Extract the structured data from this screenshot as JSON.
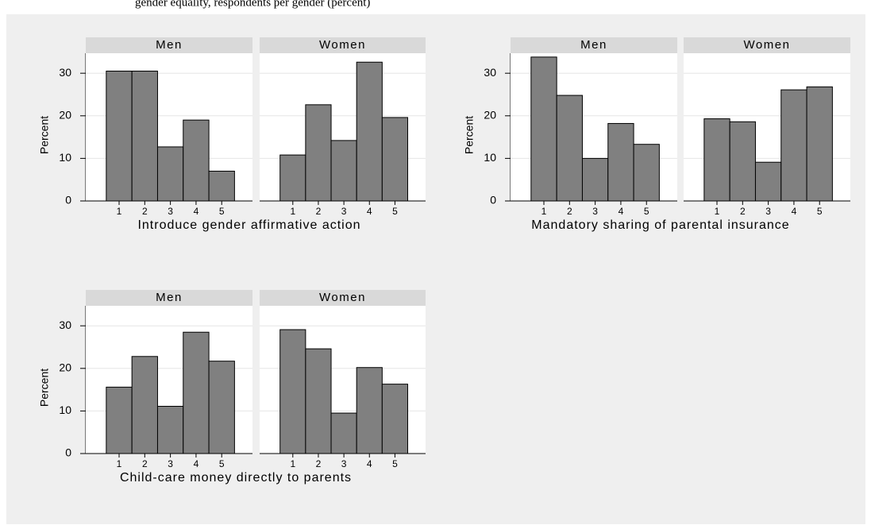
{
  "caption": "gender equality, respondents per gender (percent)",
  "chart_data": [
    {
      "type": "histogram",
      "x_label": "Introduce gender affirmative action",
      "y_label": "Percent",
      "bins": [
        0.5,
        1.5,
        2.5,
        3.5,
        4.5,
        5.5
      ],
      "xlim": [
        -0.3,
        6.2
      ],
      "xticks": [
        1,
        2,
        3,
        4,
        5
      ],
      "ylim": [
        0,
        34.7
      ],
      "yticks": [
        0,
        10,
        20,
        30
      ],
      "grid": true,
      "color": "#808080",
      "series": [
        {
          "name": "Men",
          "values": [
            30.5,
            30.5,
            12.7,
            19.0,
            7.0
          ]
        },
        {
          "name": "Women",
          "values": [
            10.8,
            22.6,
            14.2,
            32.6,
            19.6
          ]
        }
      ]
    },
    {
      "type": "histogram",
      "x_label": "Mandatory sharing of parental insurance",
      "y_label": "Percent",
      "bins": [
        0.5,
        1.5,
        2.5,
        3.5,
        4.5,
        5.5
      ],
      "xlim": [
        -0.3,
        6.2
      ],
      "xticks": [
        1,
        2,
        3,
        4,
        5
      ],
      "ylim": [
        0,
        34.7
      ],
      "yticks": [
        0,
        10,
        20,
        30
      ],
      "grid": true,
      "color": "#808080",
      "series": [
        {
          "name": "Men",
          "values": [
            33.8,
            24.8,
            10.0,
            18.2,
            13.3
          ]
        },
        {
          "name": "Women",
          "values": [
            19.3,
            18.6,
            9.1,
            26.1,
            26.8
          ]
        }
      ]
    },
    {
      "type": "histogram",
      "x_label": "Child-care money directly to parents",
      "y_label": "Percent",
      "bins": [
        0.5,
        1.5,
        2.5,
        3.5,
        4.5,
        5.5
      ],
      "xlim": [
        -0.3,
        6.2
      ],
      "xticks": [
        1,
        2,
        3,
        4,
        5
      ],
      "ylim": [
        0,
        34.7
      ],
      "yticks": [
        0,
        10,
        20,
        30
      ],
      "grid": true,
      "color": "#808080",
      "series": [
        {
          "name": "Men",
          "values": [
            15.6,
            22.8,
            11.1,
            28.5,
            21.7
          ]
        },
        {
          "name": "Women",
          "values": [
            29.1,
            24.6,
            9.5,
            20.2,
            16.3
          ]
        }
      ]
    }
  ]
}
